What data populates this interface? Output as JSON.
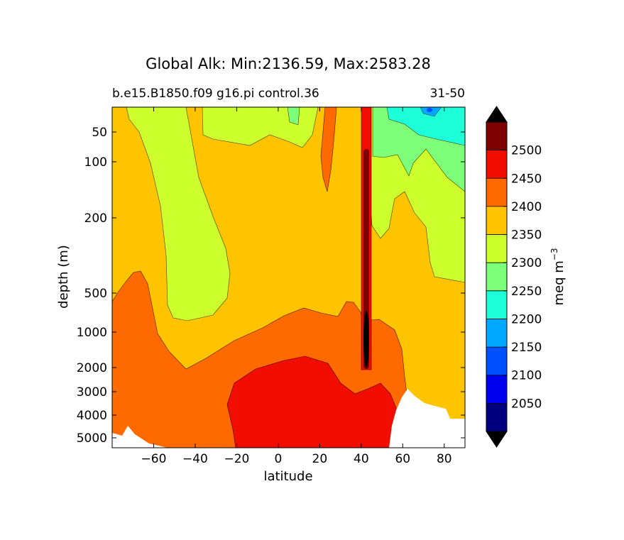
{
  "chart_data": {
    "type": "contourf",
    "title": "Global Alk: Min:2136.59, Max:2583.28",
    "subtitle_left": "b.e15.B1850.f09 g16.pi control.36",
    "subtitle_right": "31-50",
    "xlabel": "latitude",
    "ylabel": "depth (m)",
    "xlim": [
      -80,
      90
    ],
    "ylim": [
      5500,
      0
    ],
    "y_scale": "nonlinear (depth)",
    "x_ticks": [
      {
        "value": -60,
        "label": "−60"
      },
      {
        "value": -40,
        "label": "−40"
      },
      {
        "value": -20,
        "label": "−20"
      },
      {
        "value": 0,
        "label": "0"
      },
      {
        "value": 20,
        "label": "20"
      },
      {
        "value": 40,
        "label": "40"
      },
      {
        "value": 60,
        "label": "60"
      },
      {
        "value": 80,
        "label": "80"
      }
    ],
    "y_ticks": [
      {
        "value": 50,
        "label": "50"
      },
      {
        "value": 100,
        "label": "100"
      },
      {
        "value": 200,
        "label": "200"
      },
      {
        "value": 500,
        "label": "500"
      },
      {
        "value": 1000,
        "label": "1000"
      },
      {
        "value": 2000,
        "label": "2000"
      },
      {
        "value": 3000,
        "label": "3000"
      },
      {
        "value": 4000,
        "label": "4000"
      },
      {
        "value": 5000,
        "label": "5000"
      }
    ],
    "colorbar": {
      "label": "meq m",
      "label_superscript": "−3",
      "levels": [
        2000,
        2050,
        2100,
        2150,
        2200,
        2250,
        2300,
        2350,
        2400,
        2450,
        2500,
        2550
      ],
      "tick_labels": [
        "2050",
        "2100",
        "2150",
        "2200",
        "2250",
        "2300",
        "2350",
        "2400",
        "2450",
        "2500"
      ],
      "colors": [
        "#00007f",
        "#0000ee",
        "#0050ff",
        "#00a8ff",
        "#1dffd8",
        "#7dff79",
        "#ccff2b",
        "#ffc400",
        "#ff6a00",
        "#f10d00",
        "#7f0000"
      ],
      "extend_low_color": "#000000",
      "extend_high_color": "#000000"
    }
  }
}
